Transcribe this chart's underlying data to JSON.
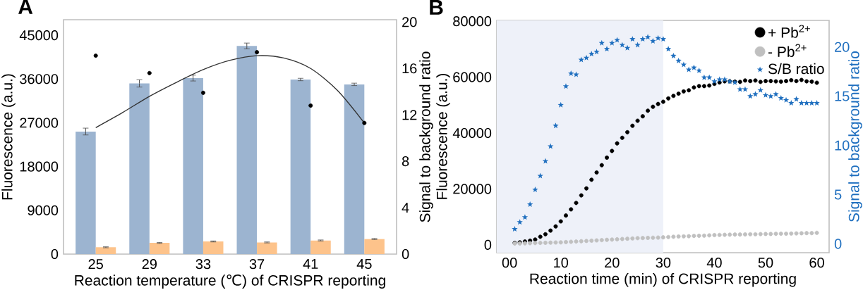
{
  "chart_data": [
    {
      "type": "bar",
      "title": "A",
      "xlabel": "Reaction temperature (℃) of CRISPR reporting",
      "ylabel": "Fluorescence (a.u.)",
      "y2label": "Signal to background ratio",
      "x": [
        25,
        29,
        33,
        37,
        41,
        45
      ],
      "xlim": [
        22.6,
        47.4
      ],
      "xticks": [
        25,
        29,
        33,
        37,
        41,
        45
      ],
      "ylim": [
        0,
        48200
      ],
      "yticks": [
        0,
        9000,
        18000,
        27000,
        36000,
        45000
      ],
      "y2lim": [
        0,
        20.2
      ],
      "y2ticks": [
        0,
        4,
        8,
        12,
        16,
        20
      ],
      "series": [
        {
          "type": "bar",
          "color": "#9cb4d0",
          "values": [
            25200,
            35100,
            36200,
            42800,
            35900,
            34900
          ],
          "errors": [
            700,
            750,
            600,
            600,
            250,
            250
          ]
        },
        {
          "type": "bar",
          "color": "#fdc38b",
          "values": [
            1400,
            2300,
            2600,
            2400,
            2800,
            3100
          ],
          "errors": [
            100,
            100,
            100,
            100,
            100,
            100
          ]
        },
        {
          "type": "scatter",
          "axis": "y2",
          "color": "#000000",
          "marker": "circle",
          "values": [
            17.1,
            15.6,
            13.9,
            17.4,
            12.8,
            11.3
          ]
        },
        {
          "type": "line",
          "axis": "y2",
          "color": "#333333",
          "x": [
            25,
            27,
            29,
            31,
            33,
            35,
            37,
            39,
            41,
            43,
            45
          ],
          "values": [
            10.9,
            12.2,
            13.6,
            14.8,
            15.9,
            16.7,
            17.1,
            16.9,
            16.0,
            14.1,
            11.3
          ]
        }
      ]
    },
    {
      "type": "scatter",
      "title": "B",
      "xlabel": "Reaction time (min) of CRISPR reporting",
      "ylabel": "Fluorescence (a.u.)",
      "y2label": "Signal to background ratio",
      "x": [
        1,
        2,
        3,
        4,
        5,
        6,
        7,
        8,
        9,
        10,
        11,
        12,
        13,
        14,
        15,
        16,
        17,
        18,
        19,
        20,
        21,
        22,
        23,
        24,
        25,
        26,
        27,
        28,
        29,
        30,
        31,
        32,
        33,
        34,
        35,
        36,
        37,
        38,
        39,
        40,
        41,
        42,
        43,
        44,
        45,
        46,
        47,
        48,
        49,
        50,
        51,
        52,
        53,
        54,
        55,
        56,
        57,
        58,
        59,
        60
      ],
      "xlim": [
        -2.5,
        62.4
      ],
      "xticks": [
        {
          "value": 0,
          "label": "00"
        },
        10,
        20,
        30,
        40,
        50,
        60
      ],
      "ylim": [
        -2800,
        80300
      ],
      "yticks": [
        0,
        20000,
        40000,
        60000,
        80000
      ],
      "y2lim": [
        -0.9,
        22.7
      ],
      "y2ticks": [
        0,
        5,
        10,
        15,
        20
      ],
      "legend": "top right",
      "bands": [
        {
          "axis": "x",
          "from": -2.5,
          "to": 30,
          "color": "#eef1f9"
        }
      ],
      "series": [
        {
          "name": "+ Pb$^{2+}$",
          "color": "#000000",
          "marker": "circle",
          "values": [
            700,
            900,
            1200,
            1500,
            1900,
            2900,
            3800,
            5100,
            6600,
            8400,
            10500,
            12700,
            15000,
            17700,
            20200,
            23300,
            25900,
            28500,
            31200,
            33600,
            36300,
            38300,
            40300,
            42600,
            44400,
            46000,
            48000,
            49400,
            50400,
            51200,
            52400,
            53300,
            54100,
            54900,
            55300,
            56300,
            56800,
            56800,
            57000,
            57600,
            58100,
            58500,
            58500,
            58400,
            58300,
            58800,
            58600,
            58800,
            58300,
            58600,
            58600,
            58500,
            58400,
            58600,
            58900,
            58600,
            59000,
            58500,
            58400,
            58000
          ]
        },
        {
          "name": "- Pb$^{2+}$",
          "color": "#c0c0c0",
          "marker": "circle",
          "values": [
            500,
            500,
            550,
            600,
            650,
            700,
            750,
            800,
            850,
            900,
            1000,
            1100,
            1200,
            1300,
            1400,
            1500,
            1600,
            1700,
            1800,
            1900,
            2000,
            2100,
            2200,
            2300,
            2400,
            2450,
            2500,
            2550,
            2600,
            2700,
            2800,
            2900,
            3000,
            3050,
            3100,
            3200,
            3250,
            3300,
            3400,
            3500,
            3550,
            3600,
            3650,
            3700,
            3700,
            3750,
            3800,
            3800,
            3850,
            3900,
            3900,
            3950,
            4000,
            4000,
            4050,
            4100,
            4150,
            4200,
            4200,
            4300
          ]
        },
        {
          "name": "S/B ratio",
          "axis": "y2",
          "color": "#1f6fbf",
          "marker": "star",
          "values": [
            1.5,
            2.2,
            2.7,
            4.0,
            5.5,
            6.9,
            8.4,
            9.9,
            12.0,
            14.1,
            16.0,
            17.3,
            17.2,
            18.7,
            18.9,
            19.3,
            19.5,
            20.4,
            19.8,
            20.4,
            20.7,
            20.2,
            19.9,
            20.8,
            20.2,
            20.8,
            21.0,
            20.6,
            20.9,
            20.8,
            19.8,
            19.1,
            18.6,
            18.2,
            17.7,
            17.9,
            17.6,
            16.9,
            16.9,
            16.5,
            16.7,
            16.7,
            16.5,
            16.4,
            15.7,
            15.7,
            15.0,
            15.2,
            15.6,
            15.1,
            15.0,
            15.2,
            14.8,
            14.6,
            14.3,
            14.7,
            14.3,
            14.3,
            14.3,
            14.3
          ]
        }
      ]
    }
  ]
}
